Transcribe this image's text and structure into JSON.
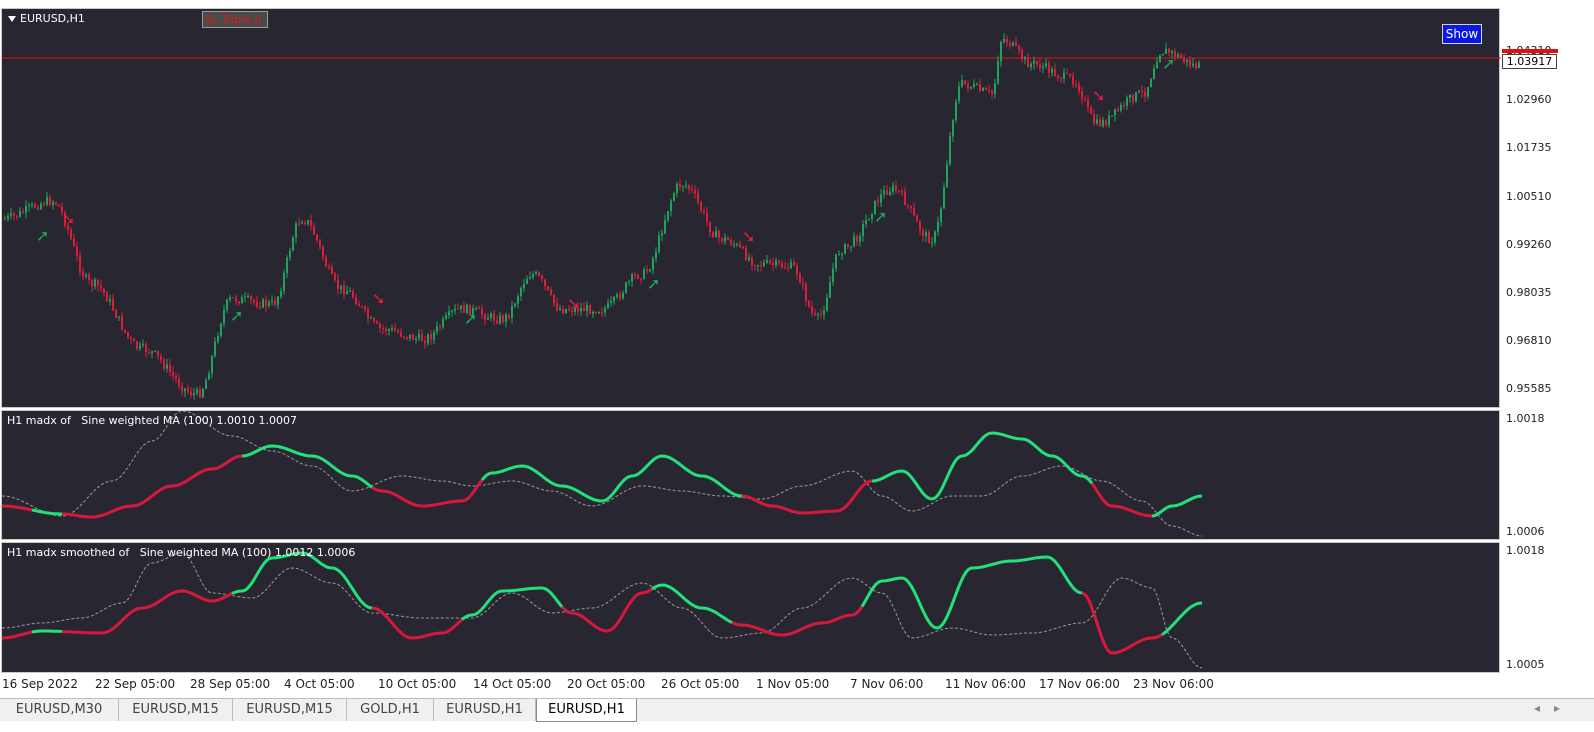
{
  "main_chart": {
    "title": "EURUSD,H1",
    "sl_button": "SL Triple Jl",
    "show_button": "Show",
    "current_price": "1.03917",
    "price_labels": [
      "1.04310",
      "1.02960",
      "1.01735",
      "1.00510",
      "0.99260",
      "0.98035",
      "0.96810",
      "0.95585"
    ],
    "colors": {
      "bull": "#1fa35a",
      "bear": "#dc1e3c",
      "hline": "#e01010",
      "background": "#282731"
    }
  },
  "indicator1": {
    "title": "H1 madx of   Sine weighted MA (100) 1.0010 1.0007",
    "y_top": "1.0018",
    "y_bottom": "1.0006"
  },
  "indicator2": {
    "title": "H1 madx smoothed of   Sine weighted MA (100) 1.0012 1.0006",
    "y_top": "1.0018",
    "y_bottom": "1.0005"
  },
  "x_axis": [
    "16 Sep 2022",
    "22 Sep 05:00",
    "28 Sep 05:00",
    "4 Oct 05:00",
    "10 Oct 05:00",
    "14 Oct 05:00",
    "20 Oct 05:00",
    "26 Oct 05:00",
    "1 Nov 05:00",
    "7 Nov 06:00",
    "11 Nov 06:00",
    "17 Nov 06:00",
    "23 Nov 06:00"
  ],
  "tabs": [
    {
      "label": "EURUSD,M30",
      "active": false
    },
    {
      "label": "EURUSD,M15",
      "active": false
    },
    {
      "label": "EURUSD,M15",
      "active": false
    },
    {
      "label": "GOLD,H1",
      "active": false
    },
    {
      "label": "EURUSD,H1",
      "active": false
    },
    {
      "label": "EURUSD,H1",
      "active": true
    }
  ],
  "scroll_icons": [
    "scroll-left-icon",
    "scroll-right-icon"
  ]
}
